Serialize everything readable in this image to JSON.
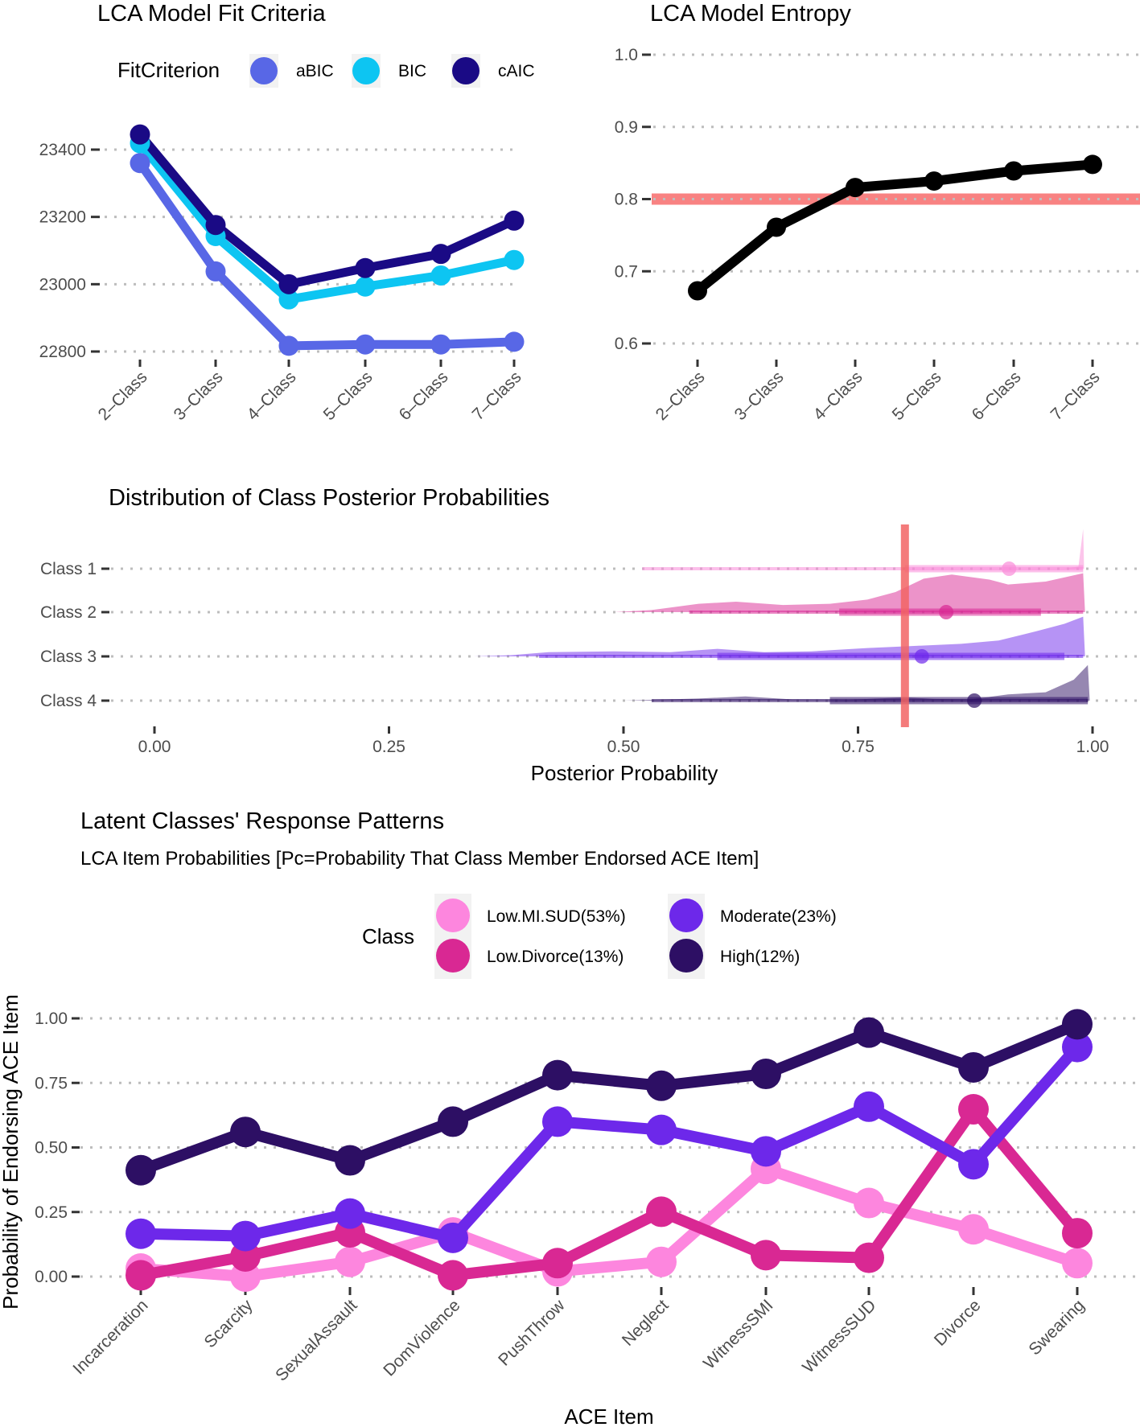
{
  "chart_data": [
    {
      "id": "fit",
      "type": "line",
      "title": "LCA Model Fit Criteria",
      "xlabel": "",
      "ylabel": "",
      "categories": [
        "2–Class",
        "3–Class",
        "4–Class",
        "5–Class",
        "6–Class",
        "7–Class"
      ],
      "yticks": [
        22800,
        23000,
        23200,
        23400
      ],
      "ytick_labels": [
        "22800",
        "23000",
        "23200",
        "23400"
      ],
      "ylim": [
        22800,
        23400
      ],
      "grid": true,
      "legend": {
        "title": "FitCriterion",
        "placement": "top"
      },
      "series": [
        {
          "name": "aBIC",
          "color": "#5867e6",
          "values": [
            23360,
            23038,
            22817,
            22821,
            22821,
            22829
          ]
        },
        {
          "name": "BIC",
          "color": "#0dc5f2",
          "values": [
            23419,
            23143,
            22955,
            22993,
            23026,
            23072
          ]
        },
        {
          "name": "cAIC",
          "color": "#1a0a85",
          "values": [
            23445,
            23176,
            23000,
            23048,
            23090,
            23189
          ]
        }
      ]
    },
    {
      "id": "entropy",
      "type": "line",
      "title": "LCA Model Entropy",
      "xlabel": "",
      "ylabel": "",
      "categories": [
        "2–Class",
        "3–Class",
        "4–Class",
        "5–Class",
        "6–Class",
        "7–Class"
      ],
      "yticks": [
        0.6,
        0.7,
        0.8,
        0.9,
        1.0
      ],
      "ytick_labels": [
        "0.6",
        "0.7",
        "0.8",
        "0.9",
        "1.0"
      ],
      "ylim": [
        0.6,
        1.0
      ],
      "grid": true,
      "reference_line": {
        "axis": "y",
        "value": 0.8,
        "color": "#f87b7b"
      },
      "series": [
        {
          "name": "Entropy",
          "color": "#000000",
          "values": [
            0.673,
            0.761,
            0.816,
            0.825,
            0.839,
            0.848
          ]
        }
      ]
    },
    {
      "id": "posterior",
      "type": "area",
      "subtype": "half-eye density with point-interval",
      "title": "Distribution of Class Posterior Probabilities",
      "xlabel": "Posterior Probability",
      "ylabel": "",
      "xticks": [
        0,
        0.25,
        0.5,
        0.75,
        1.0
      ],
      "xtick_labels": [
        "0.00",
        "0.25",
        "0.50",
        "0.75",
        "1.00"
      ],
      "xlim": [
        0,
        1
      ],
      "grid": true,
      "reference_line": {
        "axis": "x",
        "value": 0.8,
        "color": "#f26464"
      },
      "series": [
        {
          "name": "Class 1",
          "color": "#f98bd8",
          "median": 0.911,
          "interval_outer": [
            0.52,
            0.99
          ],
          "interval_inner": [
            0.8,
            0.99
          ],
          "density": [
            [
              0.52,
              0.0
            ],
            [
              0.6,
              0.0
            ],
            [
              0.7,
              0.0
            ],
            [
              0.8,
              0.0
            ],
            [
              0.9,
              0.0
            ],
            [
              0.97,
              0.0
            ],
            [
              0.985,
              0.05
            ],
            [
              0.99,
              0.95
            ],
            [
              0.991,
              0.0
            ]
          ]
        },
        {
          "name": "Class 2",
          "color": "#d92793",
          "median": 0.844,
          "interval_outer": [
            0.57,
            0.99
          ],
          "interval_inner": [
            0.73,
            0.945
          ],
          "density": [
            [
              0.49,
              0.0
            ],
            [
              0.53,
              0.05
            ],
            [
              0.58,
              0.2
            ],
            [
              0.62,
              0.25
            ],
            [
              0.67,
              0.17
            ],
            [
              0.72,
              0.2
            ],
            [
              0.76,
              0.3
            ],
            [
              0.79,
              0.48
            ],
            [
              0.82,
              0.8
            ],
            [
              0.85,
              0.9
            ],
            [
              0.89,
              0.78
            ],
            [
              0.91,
              0.66
            ],
            [
              0.95,
              0.73
            ],
            [
              0.99,
              0.93
            ],
            [
              0.992,
              0.0
            ]
          ]
        },
        {
          "name": "Class 3",
          "color": "#6e28eb",
          "median": 0.818,
          "interval_outer": [
            0.41,
            0.99
          ],
          "interval_inner": [
            0.6,
            0.97
          ],
          "density": [
            [
              0.34,
              0.0
            ],
            [
              0.38,
              0.03
            ],
            [
              0.42,
              0.1
            ],
            [
              0.49,
              0.12
            ],
            [
              0.55,
              0.1
            ],
            [
              0.6,
              0.18
            ],
            [
              0.65,
              0.1
            ],
            [
              0.7,
              0.12
            ],
            [
              0.76,
              0.2
            ],
            [
              0.81,
              0.25
            ],
            [
              0.86,
              0.3
            ],
            [
              0.9,
              0.38
            ],
            [
              0.94,
              0.6
            ],
            [
              0.97,
              0.78
            ],
            [
              0.99,
              0.95
            ],
            [
              0.992,
              0.0
            ]
          ]
        },
        {
          "name": "Class 4",
          "color": "#2d0f64",
          "median": 0.874,
          "interval_outer": [
            0.53,
            0.995
          ],
          "interval_inner": [
            0.72,
            0.995
          ],
          "density": [
            [
              0.4,
              0.0
            ],
            [
              0.5,
              0.0
            ],
            [
              0.58,
              0.05
            ],
            [
              0.63,
              0.1
            ],
            [
              0.68,
              0.03
            ],
            [
              0.74,
              0.02
            ],
            [
              0.8,
              0.08
            ],
            [
              0.83,
              0.04
            ],
            [
              0.87,
              0.03
            ],
            [
              0.91,
              0.15
            ],
            [
              0.95,
              0.2
            ],
            [
              0.98,
              0.5
            ],
            [
              0.995,
              0.85
            ],
            [
              0.997,
              0.0
            ]
          ]
        }
      ]
    },
    {
      "id": "patterns",
      "type": "line",
      "title": "Latent Classes' Response Patterns",
      "subtitle": "LCA Item Probabilities [Pc=Probability That Class Member Endorsed ACE Item]",
      "xlabel": "ACE Item",
      "ylabel": "Probability of Endorsing ACE Item",
      "categories": [
        "Incarceration",
        "Scarcity",
        "SexualAssault",
        "DomViolence",
        "PushThrow",
        "Neglect",
        "WitnessSMI",
        "WitnessSUD",
        "Divorce",
        "Swearing"
      ],
      "yticks": [
        0,
        0.25,
        0.5,
        0.75,
        1.0
      ],
      "ytick_labels": [
        "0.00",
        "0.25",
        "0.50",
        "0.75",
        "1.00"
      ],
      "ylim": [
        0,
        1
      ],
      "grid": true,
      "legend": {
        "title": "Class",
        "placement": "top"
      },
      "series": [
        {
          "name": "Low.MI.SUD(53%)",
          "color": "#fd86de",
          "values": [
            0.031,
            0.0,
            0.057,
            0.171,
            0.02,
            0.057,
            0.417,
            0.285,
            0.183,
            0.052
          ]
        },
        {
          "name": "Low.Divorce(13%)",
          "color": "#d92893",
          "values": [
            0.005,
            0.078,
            0.171,
            0.005,
            0.052,
            0.251,
            0.083,
            0.073,
            0.648,
            0.168
          ]
        },
        {
          "name": "Moderate(23%)",
          "color": "#6d28ea",
          "values": [
            0.166,
            0.157,
            0.244,
            0.15,
            0.6,
            0.568,
            0.485,
            0.658,
            0.435,
            0.889
          ]
        },
        {
          "name": "High(12%)",
          "color": "#2d0f64",
          "values": [
            0.412,
            0.56,
            0.45,
            0.6,
            0.78,
            0.739,
            0.785,
            0.945,
            0.81,
            0.977
          ]
        }
      ]
    }
  ]
}
